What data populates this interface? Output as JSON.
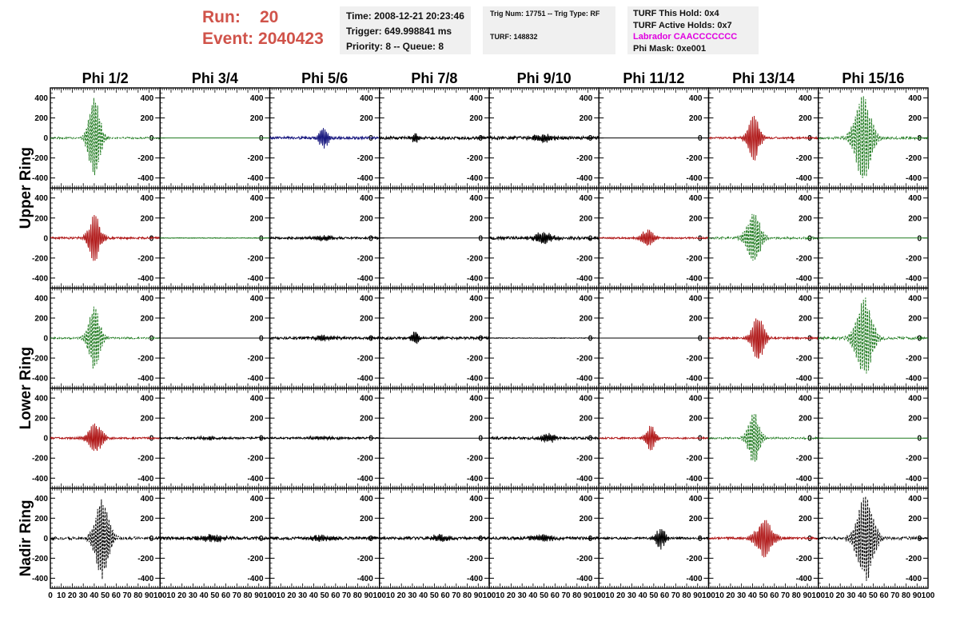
{
  "header": {
    "run_label": "Run:",
    "run_value": "20",
    "event_label": "Event:",
    "event_value": "2040423",
    "box1": [
      "Time: 2008-12-21 20:23:46",
      "Trigger: 649.998841 ms",
      "Priority: 8 -- Queue: 8"
    ],
    "box2": [
      "Trig Num: 17751 -- Trig Type: RF",
      "TURF: 148832"
    ],
    "box3": [
      "TURF This Hold: 0x4",
      "TURF Active Holds: 0x7",
      "Labrador CAACCCCCCC",
      "Phi Mask: 0xe001"
    ]
  },
  "chart_data": {
    "type": "line",
    "columns": [
      "Phi 1/2",
      "Phi 3/4",
      "Phi 5/6",
      "Phi 7/8",
      "Phi 9/10",
      "Phi 11/12",
      "Phi 13/14",
      "Phi 15/16"
    ],
    "ring_labels": [
      {
        "name": "Upper Ring",
        "rows": [
          0,
          1
        ]
      },
      {
        "name": "Lower Ring",
        "rows": [
          2,
          3
        ]
      },
      {
        "name": "Nadir Ring",
        "rows": [
          4
        ]
      }
    ],
    "x_ticks": [
      "0",
      "10",
      "20",
      "30",
      "40",
      "50",
      "60",
      "70",
      "80",
      "90",
      "100"
    ],
    "y_ticks": [
      "400",
      "200",
      "0",
      "-200",
      "-400"
    ],
    "ylim": [
      -500,
      500
    ],
    "xlim": [
      0,
      100
    ],
    "colors": {
      "green": "#1e7a1e",
      "red": "#b01818",
      "blue": "#1a1a80",
      "black": "#000000"
    },
    "panels": [
      [
        {
          "color": "green",
          "dashed": true,
          "center": 41,
          "amp": 420,
          "width": 5,
          "noise": 8,
          "freq": 1.3
        },
        {
          "color": "green",
          "dashed": false,
          "center": 50,
          "amp": 0,
          "width": 5,
          "noise": 0,
          "freq": 1
        },
        {
          "color": "blue",
          "dashed": false,
          "center": 50,
          "amp": 110,
          "width": 4,
          "noise": 12,
          "freq": 1.6
        },
        {
          "color": "black",
          "dashed": false,
          "center": 33,
          "amp": 50,
          "width": 3,
          "noise": 14,
          "freq": 1.8
        },
        {
          "color": "black",
          "dashed": false,
          "center": 50,
          "amp": 40,
          "width": 8,
          "noise": 16,
          "freq": 1.8
        },
        {
          "color": "black",
          "dashed": false,
          "center": 50,
          "amp": 0,
          "width": 5,
          "noise": 0,
          "freq": 1
        },
        {
          "color": "red",
          "dashed": false,
          "center": 42,
          "amp": 230,
          "width": 5,
          "noise": 9,
          "freq": 1.4
        },
        {
          "color": "green",
          "dashed": true,
          "center": 42,
          "amp": 450,
          "width": 7,
          "noise": 12,
          "freq": 1.2
        }
      ],
      [
        {
          "color": "red",
          "dashed": false,
          "center": 41,
          "amp": 240,
          "width": 5,
          "noise": 10,
          "freq": 1.4
        },
        {
          "color": "green",
          "dashed": false,
          "center": 50,
          "amp": 0,
          "width": 5,
          "noise": 3,
          "freq": 1
        },
        {
          "color": "black",
          "dashed": false,
          "center": 50,
          "amp": 25,
          "width": 10,
          "noise": 10,
          "freq": 1.8
        },
        {
          "color": "black",
          "dashed": false,
          "center": 50,
          "amp": 0,
          "width": 5,
          "noise": 0,
          "freq": 1
        },
        {
          "color": "black",
          "dashed": false,
          "center": 50,
          "amp": 60,
          "width": 8,
          "noise": 14,
          "freq": 1.8
        },
        {
          "color": "red",
          "dashed": false,
          "center": 45,
          "amp": 90,
          "width": 5,
          "noise": 8,
          "freq": 1.5
        },
        {
          "color": "green",
          "dashed": true,
          "center": 42,
          "amp": 260,
          "width": 6,
          "noise": 10,
          "freq": 1.3
        },
        {
          "color": "green",
          "dashed": false,
          "center": 50,
          "amp": 0,
          "width": 5,
          "noise": 0,
          "freq": 1
        }
      ],
      [
        {
          "color": "green",
          "dashed": true,
          "center": 41,
          "amp": 330,
          "width": 5,
          "noise": 8,
          "freq": 1.3
        },
        {
          "color": "black",
          "dashed": false,
          "center": 50,
          "amp": 0,
          "width": 5,
          "noise": 0,
          "freq": 1
        },
        {
          "color": "black",
          "dashed": false,
          "center": 50,
          "amp": 25,
          "width": 10,
          "noise": 12,
          "freq": 1.8
        },
        {
          "color": "black",
          "dashed": false,
          "center": 33,
          "amp": 75,
          "width": 3,
          "noise": 12,
          "freq": 1.8
        },
        {
          "color": "black",
          "dashed": false,
          "center": 50,
          "amp": 0,
          "width": 5,
          "noise": 3,
          "freq": 1
        },
        {
          "color": "black",
          "dashed": false,
          "center": 50,
          "amp": 0,
          "width": 5,
          "noise": 0,
          "freq": 1
        },
        {
          "color": "red",
          "dashed": false,
          "center": 46,
          "amp": 240,
          "width": 5,
          "noise": 9,
          "freq": 1.4
        },
        {
          "color": "green",
          "dashed": true,
          "center": 43,
          "amp": 400,
          "width": 7,
          "noise": 12,
          "freq": 1.2
        }
      ],
      [
        {
          "color": "red",
          "dashed": false,
          "center": 42,
          "amp": 150,
          "width": 6,
          "noise": 9,
          "freq": 1.5
        },
        {
          "color": "black",
          "dashed": false,
          "center": 50,
          "amp": 15,
          "width": 12,
          "noise": 9,
          "freq": 1.8
        },
        {
          "color": "black",
          "dashed": false,
          "center": 50,
          "amp": 15,
          "width": 12,
          "noise": 9,
          "freq": 1.8
        },
        {
          "color": "black",
          "dashed": false,
          "center": 50,
          "amp": 0,
          "width": 5,
          "noise": 0,
          "freq": 1
        },
        {
          "color": "black",
          "dashed": false,
          "center": 55,
          "amp": 45,
          "width": 6,
          "noise": 12,
          "freq": 1.8
        },
        {
          "color": "red",
          "dashed": false,
          "center": 48,
          "amp": 130,
          "width": 4,
          "noise": 8,
          "freq": 1.5
        },
        {
          "color": "green",
          "dashed": true,
          "center": 42,
          "amp": 270,
          "width": 5,
          "noise": 8,
          "freq": 1.3
        },
        {
          "color": "green",
          "dashed": false,
          "center": 50,
          "amp": 0,
          "width": 5,
          "noise": 0,
          "freq": 1
        }
      ],
      [
        {
          "color": "black",
          "dashed": true,
          "center": 48,
          "amp": 420,
          "width": 6,
          "noise": 14,
          "freq": 1.3
        },
        {
          "color": "black",
          "dashed": false,
          "center": 50,
          "amp": 35,
          "width": 10,
          "noise": 14,
          "freq": 1.8
        },
        {
          "color": "black",
          "dashed": false,
          "center": 50,
          "amp": 30,
          "width": 10,
          "noise": 14,
          "freq": 1.8
        },
        {
          "color": "black",
          "dashed": false,
          "center": 57,
          "amp": 35,
          "width": 8,
          "noise": 14,
          "freq": 1.8
        },
        {
          "color": "black",
          "dashed": false,
          "center": 50,
          "amp": 30,
          "width": 10,
          "noise": 14,
          "freq": 1.8
        },
        {
          "color": "black",
          "dashed": false,
          "center": 57,
          "amp": 110,
          "width": 4,
          "noise": 10,
          "freq": 1.6
        },
        {
          "color": "red",
          "dashed": false,
          "center": 52,
          "amp": 190,
          "width": 7,
          "noise": 10,
          "freq": 1.4
        },
        {
          "color": "black",
          "dashed": true,
          "center": 44,
          "amp": 440,
          "width": 7,
          "noise": 14,
          "freq": 1.2
        }
      ]
    ]
  }
}
